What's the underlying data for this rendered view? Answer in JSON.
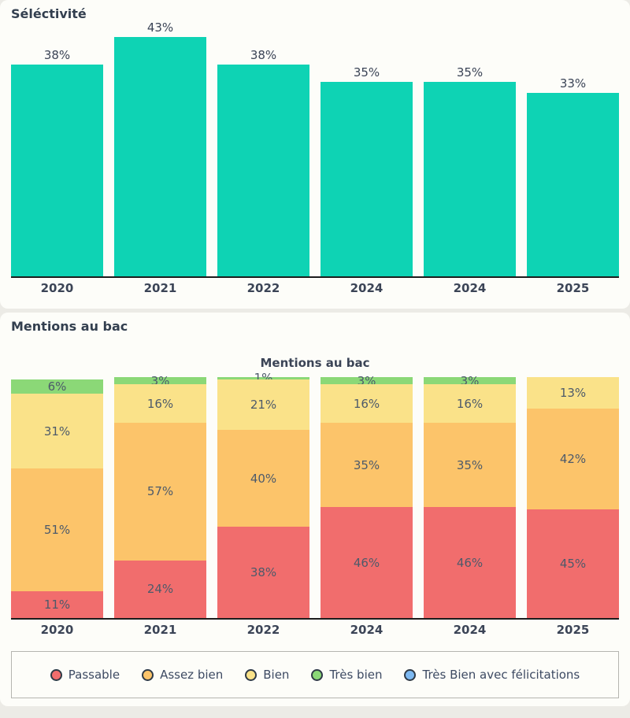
{
  "page": {
    "background_color": "#ecebe6",
    "card_color": "#fdfdf9",
    "axis_line_color": "#1c1c1c",
    "text_color": "#3b4456"
  },
  "selectivity_card": {
    "heading": "Séléctivité"
  },
  "mentions_card": {
    "heading": "Mentions au bac"
  },
  "chart_data": [
    {
      "type": "bar",
      "title": "Séléctivité",
      "categories": [
        "2020",
        "2021",
        "2022",
        "2024",
        "2024",
        "2025"
      ],
      "values": [
        38,
        43,
        38,
        35,
        35,
        33
      ],
      "value_labels": [
        "38%",
        "43%",
        "38%",
        "35%",
        "35%",
        "33%"
      ],
      "bar_color": "#0ed3b4",
      "unit": "%",
      "ylim": [
        0,
        43
      ],
      "grid": false,
      "legend": "none"
    },
    {
      "type": "stacked-bar",
      "title": "Mentions au bac",
      "categories": [
        "2020",
        "2021",
        "2022",
        "2024",
        "2024",
        "2025"
      ],
      "series": [
        {
          "name": "Passable",
          "color": "#f16d6d",
          "values": [
            11,
            24,
            38,
            46,
            46,
            45
          ]
        },
        {
          "name": "Assez bien",
          "color": "#fcc46a",
          "values": [
            51,
            57,
            40,
            35,
            35,
            42
          ]
        },
        {
          "name": "Bien",
          "color": "#fae289",
          "values": [
            31,
            16,
            21,
            16,
            16,
            13
          ]
        },
        {
          "name": "Très bien",
          "color": "#8bd877",
          "values": [
            6,
            3,
            1,
            3,
            3,
            0
          ]
        },
        {
          "name": "Très Bien avec félicitations",
          "color": "#7db9f2",
          "values": [
            0,
            0,
            0,
            0,
            0,
            0
          ]
        }
      ],
      "unit": "%",
      "ylim": [
        0,
        100
      ],
      "grid": false,
      "legend_position": "bottom"
    }
  ]
}
